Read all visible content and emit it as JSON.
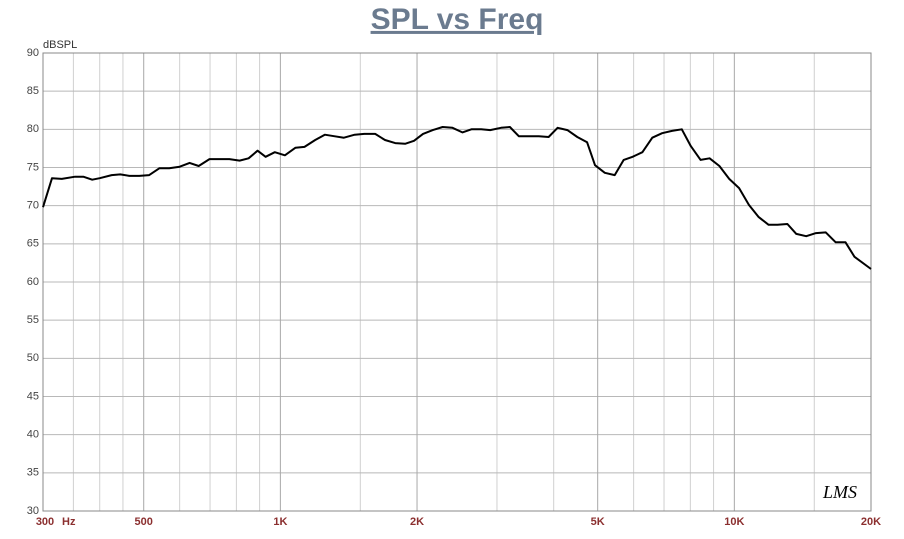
{
  "chart_data": {
    "type": "line",
    "title": "SPL vs Freq",
    "ylabel": "dBSPL",
    "xlabel": "Hz",
    "logo": "LMS",
    "xscale": "log",
    "xlim": [
      300,
      20000
    ],
    "ylim": [
      30,
      90
    ],
    "xticks": [
      300,
      500,
      {
        "value": 1000,
        "label": "1K"
      },
      {
        "value": 2000,
        "label": "2K"
      },
      {
        "value": 5000,
        "label": "5K"
      },
      {
        "value": 10000,
        "label": "10K"
      },
      {
        "value": 20000,
        "label": "20K"
      }
    ],
    "xminor": [
      350,
      400,
      450,
      600,
      700,
      800,
      900,
      1500,
      3000,
      4000,
      6000,
      7000,
      8000,
      9000,
      15000
    ],
    "yticks": [
      30,
      35,
      40,
      45,
      50,
      55,
      60,
      65,
      70,
      75,
      80,
      85,
      90
    ],
    "grid": true,
    "series": [
      {
        "name": "SPL",
        "color": "#000000",
        "x": [
          300,
          314,
          330,
          353,
          368,
          385,
          400,
          425,
          444,
          465,
          489,
          514,
          541,
          569,
          600,
          631,
          661,
          698,
          734,
          772,
          813,
          851,
          891,
          928,
          972,
          1023,
          1080,
          1130,
          1193,
          1253,
          1313,
          1380,
          1458,
          1531,
          1618,
          1700,
          1790,
          1883,
          1969,
          2061,
          2166,
          2277,
          2394,
          2517,
          2635,
          2770,
          2899,
          3062,
          3204,
          3352,
          3509,
          3709,
          3899,
          4080,
          4289,
          4508,
          4738,
          4933,
          5185,
          5450,
          5704,
          5970,
          6274,
          6596,
          6933,
          7288,
          7660,
          8017,
          8427,
          8819,
          9270,
          9744,
          10242,
          10766,
          11316,
          11895,
          12449,
          13086,
          13695,
          14396,
          15132,
          15906,
          16720,
          17576,
          18395,
          20000
        ],
        "values": [
          69.8,
          73.6,
          73.5,
          73.8,
          73.8,
          73.4,
          73.6,
          74.0,
          74.1,
          73.9,
          73.9,
          74.0,
          74.9,
          74.9,
          75.1,
          75.6,
          75.2,
          76.1,
          76.1,
          76.1,
          75.9,
          76.2,
          77.2,
          76.4,
          77.0,
          76.6,
          77.6,
          77.7,
          78.6,
          79.3,
          79.1,
          78.9,
          79.3,
          79.4,
          79.4,
          78.6,
          78.2,
          78.1,
          78.5,
          79.4,
          79.9,
          80.3,
          80.2,
          79.6,
          80.0,
          80.0,
          79.9,
          80.2,
          80.3,
          79.1,
          79.1,
          79.1,
          79.0,
          80.2,
          79.9,
          79.0,
          78.3,
          75.3,
          74.3,
          74.0,
          76.0,
          76.4,
          77.0,
          78.9,
          79.5,
          79.8,
          80.0,
          77.8,
          76.0,
          76.2,
          75.2,
          73.5,
          72.3,
          70.1,
          68.5,
          67.5,
          67.5,
          67.6,
          66.3,
          66.0,
          66.4,
          66.5,
          65.2,
          65.2,
          63.3,
          61.7
        ]
      }
    ]
  }
}
